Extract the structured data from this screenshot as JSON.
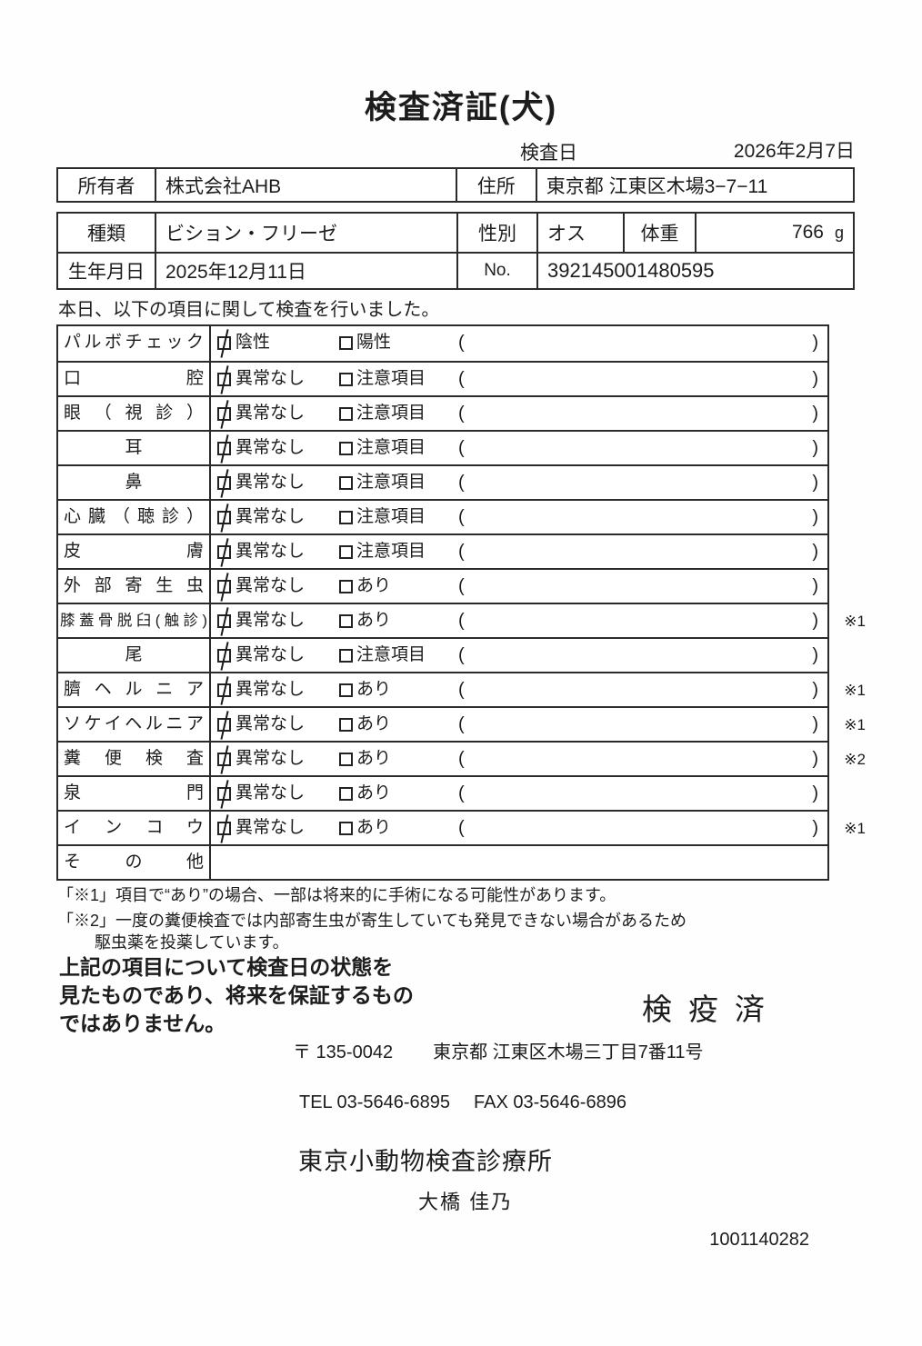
{
  "title": "検査済証(犬)",
  "inspection_date": {
    "label": "検査日",
    "value": "2026年2月7日"
  },
  "owner_table": {
    "owner_label": "所有者",
    "owner_value": "株式会社AHB",
    "address_label": "住所",
    "address_value": "東京都 江東区木場3−7−11"
  },
  "info_table": {
    "breed_label": "種類",
    "breed_value": "ビション・フリーゼ",
    "sex_label": "性別",
    "sex_value": "オス",
    "weight_label": "体重",
    "weight_value": "766",
    "weight_unit": "g",
    "birth_label": "生年月日",
    "birth_value": "2025年12月11日",
    "no_label": "No.",
    "no_value": "392145001480595"
  },
  "intro_text": "本日、以下の項目に関して検査を行いました。",
  "exam_table": {
    "paren_open": "(",
    "paren_close": ")",
    "rows": [
      {
        "label": "パルボチェック",
        "align": "justify",
        "opt1": "陰性",
        "opt1_checked": true,
        "opt2": "陽性",
        "opt2_checked": false,
        "note": ""
      },
      {
        "label": "口腔",
        "align": "justify",
        "opt1": "異常なし",
        "opt1_checked": true,
        "opt2": "注意項目",
        "opt2_checked": false,
        "note": ""
      },
      {
        "label": "眼（視診）",
        "align": "justify",
        "opt1": "異常なし",
        "opt1_checked": true,
        "opt2": "注意項目",
        "opt2_checked": false,
        "note": ""
      },
      {
        "label": "耳",
        "align": "center",
        "opt1": "異常なし",
        "opt1_checked": true,
        "opt2": "注意項目",
        "opt2_checked": false,
        "note": ""
      },
      {
        "label": "鼻",
        "align": "center",
        "opt1": "異常なし",
        "opt1_checked": true,
        "opt2": "注意項目",
        "opt2_checked": false,
        "note": ""
      },
      {
        "label": "心臓（聴診）",
        "align": "justify",
        "opt1": "異常なし",
        "opt1_checked": true,
        "opt2": "注意項目",
        "opt2_checked": false,
        "note": ""
      },
      {
        "label": "皮膚",
        "align": "justify",
        "opt1": "異常なし",
        "opt1_checked": true,
        "opt2": "注意項目",
        "opt2_checked": false,
        "note": ""
      },
      {
        "label": "外部寄生虫",
        "align": "justify",
        "opt1": "異常なし",
        "opt1_checked": true,
        "opt2": "あり",
        "opt2_checked": false,
        "note": ""
      },
      {
        "label": "膝蓋骨脱臼(触診)",
        "align": "justify",
        "opt1": "異常なし",
        "opt1_checked": true,
        "opt2": "あり",
        "opt2_checked": false,
        "note": "※1"
      },
      {
        "label": "尾",
        "align": "center",
        "opt1": "異常なし",
        "opt1_checked": true,
        "opt2": "注意項目",
        "opt2_checked": false,
        "note": ""
      },
      {
        "label": "臍ヘルニア",
        "align": "justify",
        "opt1": "異常なし",
        "opt1_checked": true,
        "opt2": "あり",
        "opt2_checked": false,
        "note": "※1"
      },
      {
        "label": "ソケイヘルニア",
        "align": "justify",
        "opt1": "異常なし",
        "opt1_checked": true,
        "opt2": "あり",
        "opt2_checked": false,
        "note": "※1"
      },
      {
        "label": "糞便検査",
        "align": "justify",
        "opt1": "異常なし",
        "opt1_checked": true,
        "opt2": "あり",
        "opt2_checked": false,
        "note": "※2"
      },
      {
        "label": "泉門",
        "align": "justify",
        "opt1": "異常なし",
        "opt1_checked": true,
        "opt2": "あり",
        "opt2_checked": false,
        "note": ""
      },
      {
        "label": "インコウ",
        "align": "justify",
        "opt1": "異常なし",
        "opt1_checked": true,
        "opt2": "あり",
        "opt2_checked": false,
        "note": "※1"
      },
      {
        "label": "その他",
        "align": "justify",
        "empty": true,
        "note": ""
      }
    ]
  },
  "footnotes": [
    "「※1」項目で“あり”の場合、一部は将来的に手術になる可能性があります。",
    "「※2」一度の糞便検査では内部寄生虫が寄生していても発見できない場合があるため",
    "駆虫薬を投薬しています。"
  ],
  "disclaimer": "上記の項目について検査日の状態を\n見たものであり、将来を保証するもの\nではありません。",
  "quarantine_stamp": "検疫済",
  "clinic": {
    "postal_code": "〒 135-0042",
    "address": "東京都 江東区木場三丁目7番11号",
    "tel": "TEL 03-5646-6895",
    "fax": "FAX 03-5646-6896",
    "name": "東京小動物検査診療所",
    "vet_name": "大橋 佳乃"
  },
  "document_number": "1001140282"
}
